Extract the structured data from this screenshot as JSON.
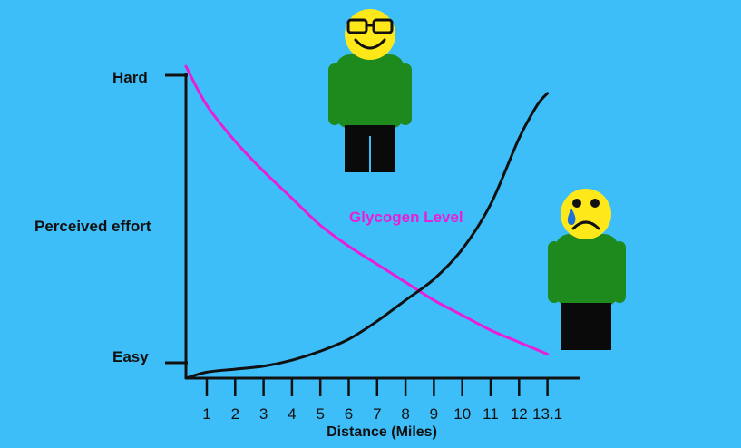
{
  "chart_data": {
    "type": "line",
    "title": "",
    "xlabel": "Distance (Miles)",
    "ylabel": "Perceived effort",
    "y_tick_labels": [
      "Easy",
      "Hard"
    ],
    "x_ticks": [
      "1",
      "2",
      "3",
      "4",
      "5",
      "6",
      "7",
      "8",
      "9",
      "10",
      "11",
      "12",
      "13.1"
    ],
    "xlim": [
      0,
      13.1
    ],
    "ylim": [
      0,
      10
    ],
    "grid": false,
    "series": [
      {
        "name": "Glycogen Level",
        "color": "#E81ED8",
        "x": [
          0,
          1,
          2,
          3,
          4,
          5,
          6,
          7,
          8,
          9,
          10,
          11,
          12,
          13.1
        ],
        "y": [
          10.4,
          9.1,
          7.9,
          6.9,
          6.0,
          5.1,
          4.4,
          3.8,
          3.2,
          2.6,
          2.1,
          1.6,
          1.2,
          0.8
        ]
      },
      {
        "name": "",
        "color": "#111111",
        "x": [
          0,
          1,
          2,
          3,
          4,
          5,
          6,
          7,
          8,
          9,
          10,
          11,
          12,
          12.7,
          13.1
        ],
        "y": [
          0.0,
          0.2,
          0.3,
          0.4,
          0.6,
          0.9,
          1.3,
          1.9,
          2.6,
          3.3,
          4.3,
          5.8,
          8.0,
          9.1,
          9.5
        ]
      }
    ],
    "annotations": [
      "Glycogen Level"
    ]
  },
  "figures": [
    {
      "name": "happy-runner",
      "mood": "happy",
      "accessory": "glasses"
    },
    {
      "name": "sad-runner",
      "mood": "sad",
      "accessory": "tear"
    }
  ],
  "colors": {
    "background": "#3EBEF8",
    "shirt": "#1E8A1E",
    "shorts": "#0A0A0A",
    "face": "#FFE81A",
    "tear": "#1E6FD9"
  }
}
